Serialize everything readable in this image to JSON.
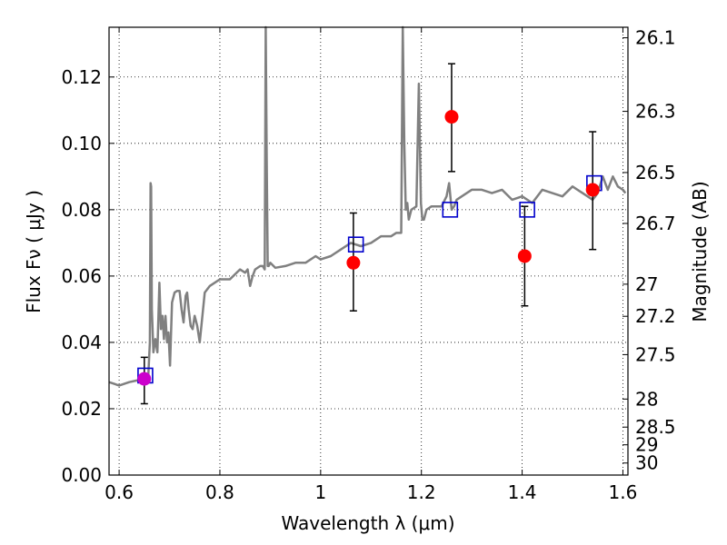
{
  "chart_data": {
    "type": "scatter",
    "title": "",
    "xlabel": "Wavelength  λ (μm)",
    "ylabel": "Flux  Fν  ( μJy )",
    "y2label": "Magnitude (AB)",
    "xlim": [
      0.58,
      1.61
    ],
    "ylim": [
      0.0,
      0.135
    ],
    "grid": true,
    "x_ticks": [
      0.6,
      0.8,
      1.0,
      1.2,
      1.4,
      1.6
    ],
    "x_tick_labels": [
      "0.6",
      "0.8",
      "1",
      "1.2",
      "1.4",
      "1.6"
    ],
    "y_ticks": [
      0.0,
      0.02,
      0.04,
      0.06,
      0.08,
      0.1,
      0.12
    ],
    "y_tick_labels": [
      "0.00",
      "0.02",
      "0.04",
      "0.06",
      "0.08",
      "0.10",
      "0.12"
    ],
    "mag_ticks": [
      26.1,
      26.3,
      26.5,
      26.7,
      27,
      27.2,
      27.5,
      28,
      28.5,
      29,
      30
    ],
    "mag_tick_labels": [
      "26.1",
      "26.3",
      "26.5",
      "26.7",
      "27",
      "27.2",
      "27.5",
      "28",
      "28.5",
      "29",
      "30"
    ],
    "colors": {
      "model": "#808080",
      "observed": "#ff0000",
      "observed_first": "#cc00cc",
      "synthetic": "#0000cc",
      "errorbar": "#000000"
    },
    "model_spectrum": {
      "x": [
        0.58,
        0.6,
        0.62,
        0.635,
        0.645,
        0.652,
        0.658,
        0.661,
        0.6625,
        0.6635,
        0.665,
        0.668,
        0.672,
        0.676,
        0.68,
        0.683,
        0.686,
        0.689,
        0.692,
        0.695,
        0.698,
        0.701,
        0.705,
        0.71,
        0.715,
        0.72,
        0.724,
        0.728,
        0.732,
        0.735,
        0.738,
        0.742,
        0.746,
        0.75,
        0.755,
        0.76,
        0.77,
        0.78,
        0.79,
        0.8,
        0.82,
        0.84,
        0.85,
        0.855,
        0.86,
        0.865,
        0.87,
        0.88,
        0.885,
        0.889,
        0.891,
        0.893,
        0.895,
        0.897,
        0.9,
        0.91,
        0.93,
        0.95,
        0.97,
        0.99,
        1.0,
        1.02,
        1.04,
        1.06,
        1.08,
        1.1,
        1.12,
        1.14,
        1.15,
        1.16,
        1.163,
        1.166,
        1.169,
        1.172,
        1.175,
        1.18,
        1.19,
        1.195,
        1.199,
        1.202,
        1.205,
        1.21,
        1.22,
        1.24,
        1.25,
        1.255,
        1.26,
        1.265,
        1.27,
        1.28,
        1.3,
        1.32,
        1.34,
        1.36,
        1.38,
        1.4,
        1.42,
        1.44,
        1.46,
        1.48,
        1.5,
        1.52,
        1.54,
        1.55,
        1.56,
        1.57,
        1.58,
        1.59,
        1.6,
        1.605
      ],
      "y": [
        0.028,
        0.027,
        0.028,
        0.0285,
        0.029,
        0.0295,
        0.03,
        0.04,
        0.088,
        0.087,
        0.05,
        0.037,
        0.041,
        0.037,
        0.058,
        0.044,
        0.048,
        0.041,
        0.048,
        0.04,
        0.043,
        0.033,
        0.052,
        0.055,
        0.0555,
        0.0555,
        0.05,
        0.046,
        0.054,
        0.055,
        0.05,
        0.045,
        0.044,
        0.048,
        0.045,
        0.04,
        0.055,
        0.057,
        0.058,
        0.059,
        0.059,
        0.062,
        0.061,
        0.062,
        0.057,
        0.06,
        0.062,
        0.063,
        0.063,
        0.062,
        0.14,
        0.095,
        0.063,
        0.063,
        0.064,
        0.0625,
        0.063,
        0.064,
        0.064,
        0.066,
        0.065,
        0.066,
        0.068,
        0.07,
        0.069,
        0.07,
        0.072,
        0.072,
        0.073,
        0.073,
        0.14,
        0.1,
        0.08,
        0.082,
        0.077,
        0.08,
        0.081,
        0.118,
        0.082,
        0.077,
        0.077,
        0.08,
        0.081,
        0.081,
        0.084,
        0.088,
        0.08,
        0.081,
        0.083,
        0.084,
        0.086,
        0.086,
        0.085,
        0.086,
        0.083,
        0.084,
        0.082,
        0.086,
        0.085,
        0.084,
        0.087,
        0.085,
        0.083,
        0.085,
        0.09,
        0.086,
        0.09,
        0.087,
        0.086,
        0.085
      ]
    },
    "observed": {
      "x": [
        0.65,
        1.065,
        1.26,
        1.405,
        1.54
      ],
      "y": [
        0.029,
        0.064,
        0.108,
        0.066,
        0.086
      ],
      "yerr_low": [
        0.0215,
        0.0495,
        0.0915,
        0.051,
        0.068
      ],
      "yerr_high": [
        0.0355,
        0.079,
        0.124,
        0.081,
        0.1035
      ]
    },
    "synthetic": {
      "x": [
        0.652,
        1.07,
        1.257,
        1.41,
        1.543
      ],
      "y": [
        0.03,
        0.0695,
        0.08,
        0.08,
        0.088
      ]
    }
  }
}
